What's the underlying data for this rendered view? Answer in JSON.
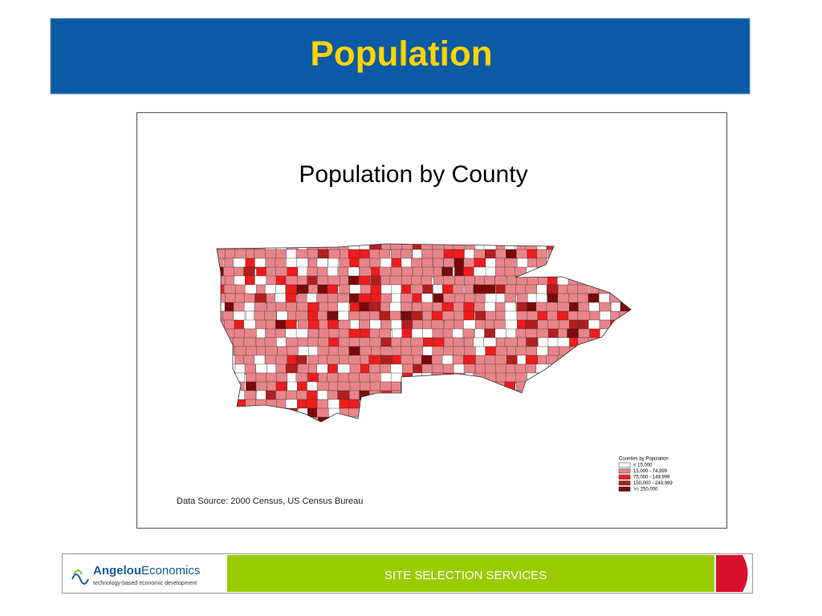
{
  "header": {
    "title": "Population"
  },
  "map": {
    "title": "Population by County",
    "legend": {
      "title": "Counties by Population",
      "items": [
        {
          "label": "< 15,000",
          "color": "#ffffff"
        },
        {
          "label": "15,000 - 74,999",
          "color": "#e9858a"
        },
        {
          "label": "75,000 - 149,999",
          "color": "#ee1c1c"
        },
        {
          "label": "150,000 - 249,999",
          "color": "#b21e1e"
        },
        {
          "label": ">= 250,000",
          "color": "#7a0a0a"
        }
      ]
    },
    "source": "Data Source:  2000 Census, US Census Bureau"
  },
  "footer": {
    "logo_bold": "Angelou",
    "logo_rest": "Economics",
    "tagline": "technology-based economic development",
    "banner": "SITE SELECTION SERVICES"
  }
}
